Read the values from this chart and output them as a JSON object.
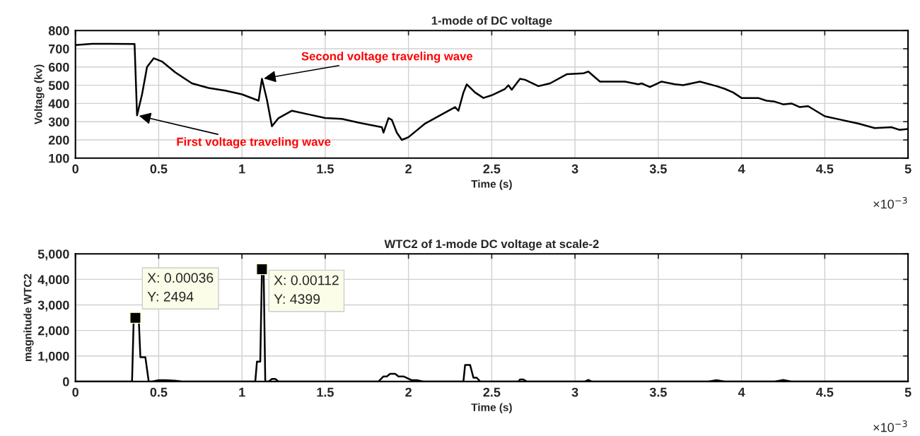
{
  "chart_data": [
    {
      "type": "line",
      "title": "1-mode of DC voltage",
      "xlabel": "Time (s)",
      "ylabel": "Voltage (kv)",
      "xlim": [
        0,
        5
      ],
      "ylim": [
        100,
        800
      ],
      "xticks": [
        0,
        0.5,
        1,
        1.5,
        2,
        2.5,
        3,
        3.5,
        4,
        4.5,
        5
      ],
      "yticks": [
        100,
        200,
        300,
        400,
        500,
        600,
        700,
        800
      ],
      "grid": true,
      "legend": false,
      "marker": "none",
      "line_style": "solid",
      "series": [
        {
          "color": "#000000",
          "x": [
            0,
            0.1,
            0.2,
            0.35,
            0.355,
            0.37,
            0.4,
            0.43,
            0.47,
            0.52,
            0.6,
            0.7,
            0.8,
            0.9,
            1,
            1.1,
            1.12,
            1.15,
            1.18,
            1.22,
            1.3,
            1.4,
            1.5,
            1.6,
            1.7,
            1.84,
            1.85,
            1.88,
            1.9,
            1.93,
            1.96,
            2,
            2.1,
            2.2,
            2.28,
            2.3,
            2.33,
            2.35,
            2.4,
            2.45,
            2.5,
            2.58,
            2.6,
            2.62,
            2.67,
            2.7,
            2.78,
            2.85,
            2.95,
            3.05,
            3.08,
            3.15,
            3.3,
            3.38,
            3.4,
            3.45,
            3.52,
            3.6,
            3.65,
            3.75,
            3.85,
            3.9,
            3.95,
            4,
            4.1,
            4.15,
            4.2,
            4.25,
            4.3,
            4.35,
            4.4,
            4.5,
            4.6,
            4.65,
            4.7,
            4.8,
            4.9,
            4.95,
            5
          ],
          "values": [
            720,
            727,
            727,
            726,
            726,
            335,
            450,
            600,
            648,
            630,
            570,
            510,
            485,
            470,
            450,
            415,
            535,
            420,
            275,
            320,
            360,
            340,
            320,
            315,
            295,
            270,
            240,
            320,
            310,
            240,
            200,
            215,
            290,
            340,
            380,
            360,
            460,
            505,
            460,
            430,
            445,
            480,
            500,
            475,
            535,
            530,
            495,
            510,
            560,
            565,
            575,
            520,
            520,
            505,
            510,
            490,
            520,
            505,
            500,
            520,
            495,
            480,
            460,
            430,
            430,
            415,
            410,
            395,
            400,
            380,
            385,
            330,
            310,
            300,
            290,
            265,
            270,
            255,
            260
          ]
        }
      ],
      "annotations": [
        {
          "text": "First voltage traveling wave",
          "x": 0.37,
          "y": 335
        },
        {
          "text": "Second voltage traveling wave",
          "x": 1.12,
          "y": 535
        },
        "×10$^{−3}$"
      ]
    },
    {
      "type": "line",
      "title": "WTC2 of 1-mode DC voltage at scale-2",
      "xlabel": "Time (s)",
      "ylabel": "magnitude WTC2",
      "xlim": [
        0,
        5
      ],
      "ylim": [
        0,
        5000
      ],
      "xticks": [
        0,
        0.5,
        1,
        1.5,
        2,
        2.5,
        3,
        3.5,
        4,
        4.5,
        5
      ],
      "yticks": [
        {
          "value": 0,
          "label": "0"
        },
        {
          "value": 1000,
          "label": "1,000"
        },
        {
          "value": 2000,
          "label": "2,000"
        },
        {
          "value": 3000,
          "label": "3,000"
        },
        {
          "value": 4000,
          "label": "4,000"
        },
        {
          "value": 5000,
          "label": "5,000"
        }
      ],
      "grid": true,
      "legend": false,
      "marker": "none",
      "line_style": "solid",
      "series": [
        {
          "color": "#000000",
          "x": [
            0,
            0.34,
            0.35,
            0.36,
            0.38,
            0.39,
            0.41,
            0.42,
            0.44,
            0.46,
            0.5,
            0.54,
            0.6,
            0.64,
            1.06,
            1.08,
            1.09,
            1.1,
            1.11,
            1.12,
            1.13,
            1.14,
            1.16,
            1.18,
            1.2,
            1.22,
            1.82,
            1.85,
            1.87,
            1.89,
            1.92,
            1.94,
            1.97,
            2.02,
            2.05,
            2.09,
            2.31,
            2.33,
            2.34,
            2.36,
            2.37,
            2.39,
            2.41,
            2.43,
            2.66,
            2.67,
            2.69,
            2.71,
            3.06,
            3.08,
            3.1,
            3.8,
            3.85,
            3.9,
            4.2,
            4.25,
            4.3,
            5
          ],
          "values": [
            0,
            0,
            2494,
            2494,
            2494,
            950,
            950,
            950,
            0,
            0,
            50,
            50,
            30,
            0,
            0,
            0,
            780,
            780,
            780,
            4399,
            4399,
            0,
            0,
            100,
            100,
            0,
            0,
            200,
            200,
            300,
            300,
            200,
            200,
            50,
            50,
            0,
            0,
            0,
            650,
            650,
            650,
            150,
            150,
            0,
            0,
            80,
            80,
            0,
            0,
            60,
            0,
            0,
            50,
            0,
            0,
            60,
            0,
            0
          ]
        }
      ],
      "annotations": [
        {
          "text": "X: 0.00036\nY: 2494",
          "x": 0.36,
          "y": 2494
        },
        {
          "text": "X: 0.00112\nY: 4399",
          "x": 1.12,
          "y": 4399
        },
        "×10$^{−3}$"
      ]
    }
  ]
}
